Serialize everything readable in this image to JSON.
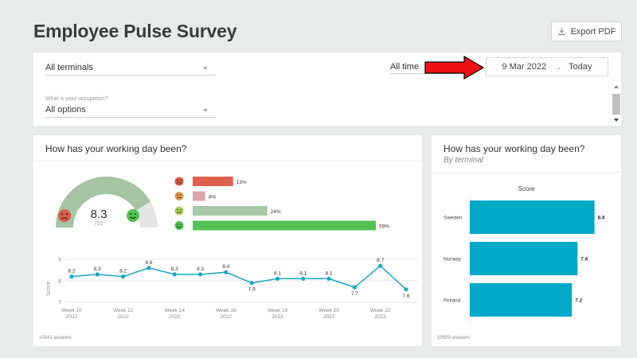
{
  "page": {
    "title": "Employee Pulse Survey"
  },
  "toolbar": {
    "export_label": "Export PDF"
  },
  "filters": {
    "terminal": {
      "value": "All terminals"
    },
    "occupation": {
      "label": "What is your occupation?",
      "value": "All options"
    },
    "time": {
      "value": "All time"
    },
    "date_range": {
      "start": "9 Mar 2022",
      "end": "Today"
    }
  },
  "overview": {
    "title": "How has your working day been?",
    "gauge": {
      "score": "8.3",
      "scale": "/10",
      "value": 8.3,
      "max": 10
    },
    "distribution": [
      {
        "emoji": "very-unhappy",
        "label": "13%",
        "value": 13,
        "color": "#e06050"
      },
      {
        "emoji": "unhappy",
        "label": "4%",
        "value": 4,
        "color": "#dba6a6"
      },
      {
        "emoji": "neutral",
        "label": "24%",
        "value": 24,
        "color": "#a8c8a5"
      },
      {
        "emoji": "happy",
        "label": "59%",
        "value": 59,
        "color": "#53c353"
      }
    ],
    "answers": "10541 answers"
  },
  "chart_data": [
    {
      "type": "line",
      "ylabel": "Score",
      "ylim": [
        7,
        9
      ],
      "yticks": [
        "7",
        "8",
        "9"
      ],
      "x_ticks": [
        {
          "week": "Week 10",
          "year": "2022"
        },
        {
          "week": "Week 12",
          "year": "2022"
        },
        {
          "week": "Week 14",
          "year": "2022"
        },
        {
          "week": "Week 16",
          "year": "2022"
        },
        {
          "week": "Week 18",
          "year": "2022"
        },
        {
          "week": "Week 20",
          "year": "2022"
        },
        {
          "week": "Week 22",
          "year": "2022"
        }
      ],
      "x": [
        10,
        11,
        12,
        13,
        14,
        15,
        16,
        17,
        18,
        19,
        20,
        21,
        22,
        23
      ],
      "values": [
        8.2,
        8.3,
        8.2,
        8.6,
        8.3,
        8.3,
        8.4,
        7.9,
        8.1,
        8.1,
        8.1,
        7.7,
        8.7,
        7.6
      ],
      "data_labels": [
        "8.2",
        "8.3",
        "8.2",
        "8.6",
        "8.3",
        "8.3",
        "8.4",
        "7.9",
        "8.1",
        "8.1",
        "8.1",
        "7.7",
        "8.7",
        "7.6"
      ],
      "color": "#1aa8c4"
    },
    {
      "type": "bar",
      "orientation": "horizontal",
      "title": "How has your working day been?",
      "subtitle": "By terminal",
      "series_title": "Score",
      "categories": [
        "Sweden",
        "Norway",
        "Finland"
      ],
      "values": [
        8.8,
        7.6,
        7.2
      ],
      "data_labels": [
        "8.8",
        "7.6",
        "7.2"
      ],
      "xlim": [
        0,
        10
      ],
      "color": "#00a9c8",
      "answers": "10509 answers"
    }
  ]
}
